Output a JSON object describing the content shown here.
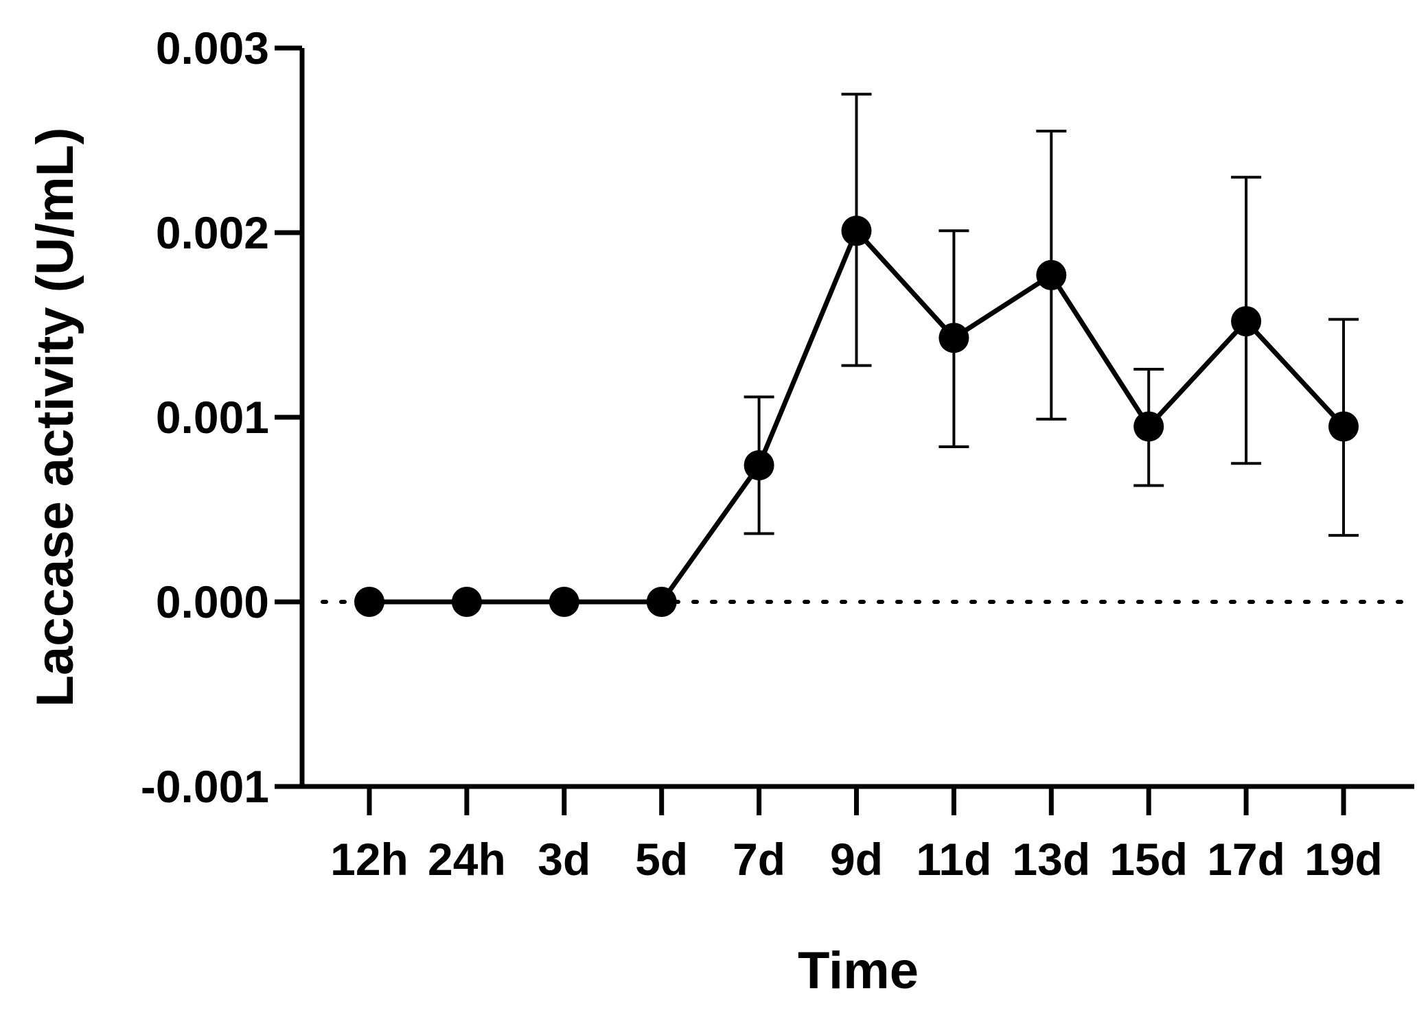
{
  "chart_data": {
    "type": "line",
    "title": "",
    "xlabel": "Time",
    "ylabel": "Laccase activity (U/mL)",
    "categories": [
      "12h",
      "24h",
      "3d",
      "5d",
      "7d",
      "9d",
      "11d",
      "13d",
      "15d",
      "17d",
      "19d"
    ],
    "series": [
      {
        "values": [
          0.0,
          0.0,
          0.0,
          0.0,
          0.00074,
          0.00201,
          0.00143,
          0.00177,
          0.00095,
          0.00152,
          0.00095
        ],
        "error_upper": [
          0.0,
          0.0,
          0.0,
          0.0,
          0.00111,
          0.00275,
          0.00201,
          0.00255,
          0.00126,
          0.0023,
          0.00153
        ],
        "error_lower": [
          0.0,
          0.0,
          0.0,
          0.0,
          0.00037,
          0.00128,
          0.00084,
          0.00099,
          0.00063,
          0.00075,
          0.00036
        ]
      }
    ],
    "ylim": [
      -0.001,
      0.003
    ],
    "yticks": [
      -0.001,
      0.0,
      0.001,
      0.002,
      0.003
    ],
    "ytick_labels": [
      "-0.001",
      "0.000",
      "0.001",
      "0.002",
      "0.003"
    ],
    "zero_reference_line": "dotted",
    "grid": false,
    "legend": "none",
    "colors": {
      "line": "#000000",
      "marker": "#000000",
      "axis": "#000000"
    }
  }
}
